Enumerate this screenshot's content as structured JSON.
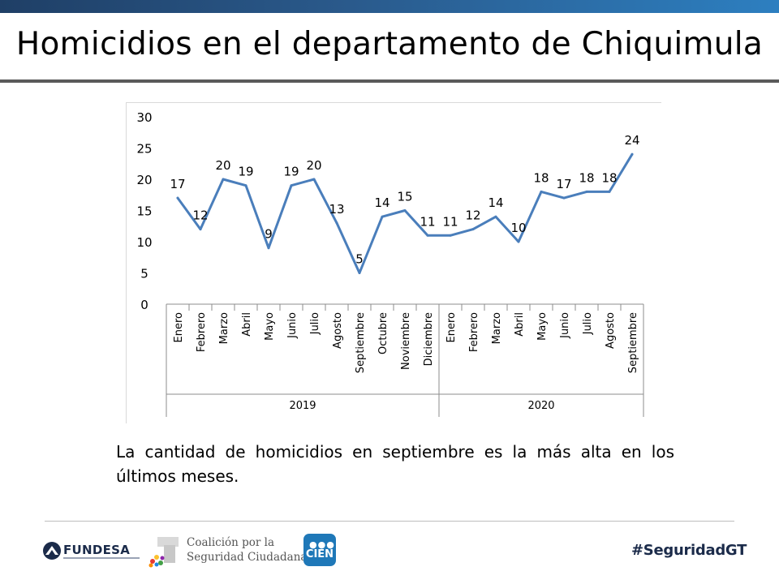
{
  "slide": {
    "title": "Homicidios en el departamento de Chiquimula",
    "caption": "La cantidad de homicidios en septiembre es la más alta en los últimos meses."
  },
  "chart_data": {
    "type": "line",
    "title": "",
    "xlabel": "",
    "ylabel": "",
    "ylim": [
      0,
      30
    ],
    "yticks": [
      0,
      5,
      10,
      15,
      20,
      25,
      30
    ],
    "grid": false,
    "legend": "none",
    "line_color": "#4a7ebb",
    "groups": [
      {
        "label": "2019",
        "categories": [
          "Enero",
          "Febrero",
          "Marzo",
          "Abril",
          "Mayo",
          "Junio",
          "Julio",
          "Agosto",
          "Septiembre",
          "Octubre",
          "Noviembre",
          "Diciembre"
        ]
      },
      {
        "label": "2020",
        "categories": [
          "Enero",
          "Febrero",
          "Marzo",
          "Abril",
          "Mayo",
          "Junio",
          "Julio",
          "Agosto",
          "Septiembre"
        ]
      }
    ],
    "series": [
      {
        "name": "Homicidios",
        "values": [
          17,
          12,
          20,
          19,
          9,
          19,
          20,
          13,
          5,
          14,
          15,
          11,
          11,
          12,
          14,
          10,
          18,
          17,
          18,
          18,
          24
        ]
      }
    ]
  },
  "footer": {
    "fundesa": "FUNDESA",
    "coalicion_line1": "Coalición por la",
    "coalicion_line2": "Seguridad Ciudadana",
    "cien": "CIEN",
    "hashtag": "#SeguridadGT"
  },
  "colors": {
    "top_band": "#2a5a8c",
    "axis": "#8c8c8c",
    "hashtag": "#1b2b4a",
    "cien_bg": "#1f78b8"
  }
}
